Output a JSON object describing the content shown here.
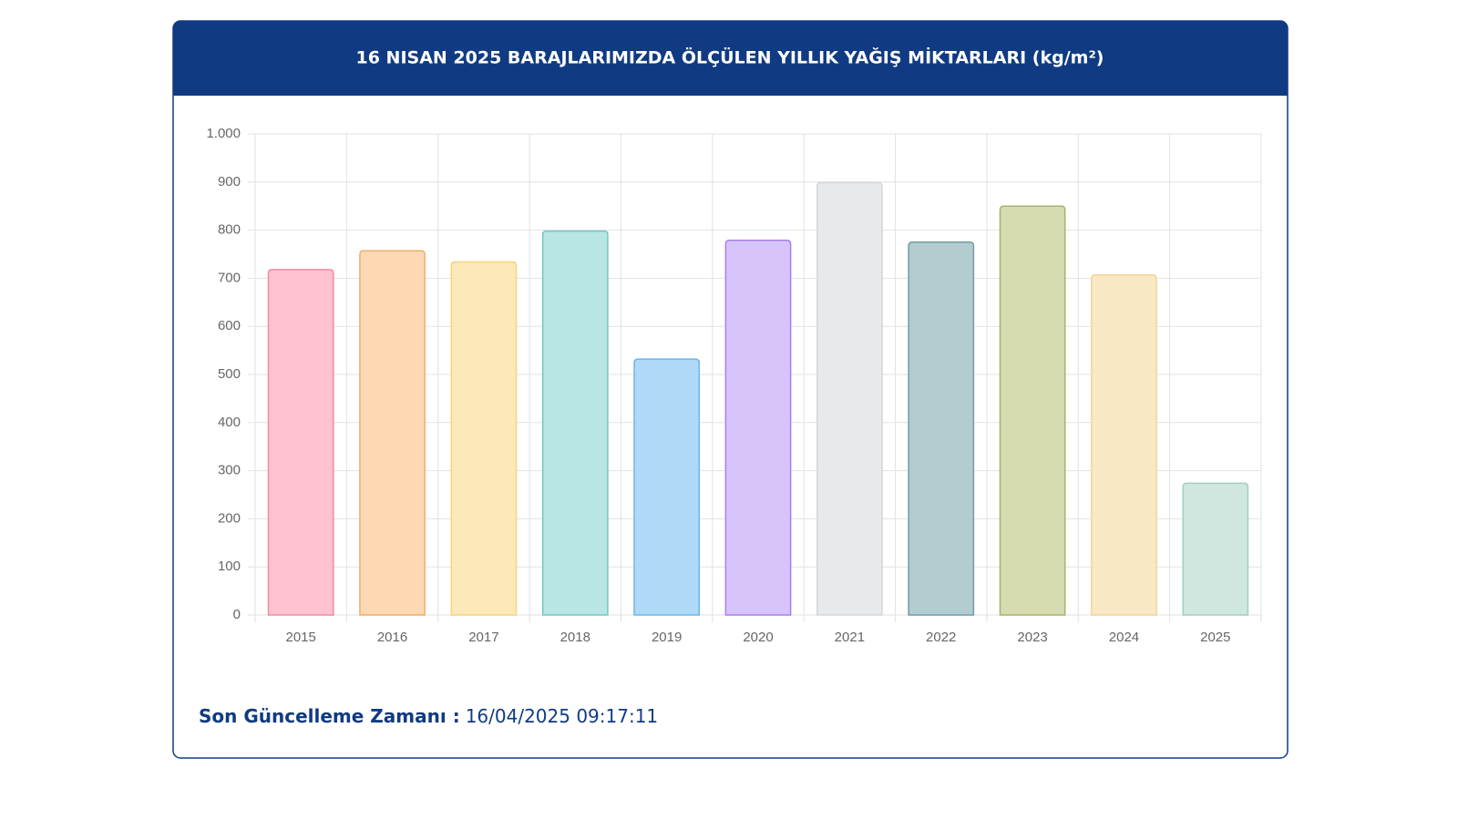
{
  "chart_data": {
    "type": "bar",
    "title": "16 NISAN 2025 BARAJLARIMIZDA ÖLÇÜLEN YILLIK YAĞIŞ MİKTARLARI (kg/m²)",
    "categories": [
      "2015",
      "2016",
      "2017",
      "2018",
      "2019",
      "2020",
      "2021",
      "2022",
      "2023",
      "2024",
      "2025"
    ],
    "values": [
      718,
      757,
      734,
      798,
      532,
      779,
      899,
      775,
      850,
      707,
      274
    ],
    "colors": [
      "#ffc2d1",
      "#fdd8b3",
      "#fde8b9",
      "#b8e6e4",
      "#b0d9f7",
      "#d7c4fb",
      "#e8e9eb",
      "#b2ccd0",
      "#d6dbb2",
      "#f9e8c6",
      "#cfe7de"
    ],
    "border_colors": [
      "#f08aa3",
      "#f2ac6b",
      "#f7d27c",
      "#72c7c2",
      "#6cb5ec",
      "#a97ef0",
      "#d5d7da",
      "#6e9ea4",
      "#a9b26c",
      "#f0d593",
      "#9fd1bd"
    ],
    "ylim": [
      0,
      1000
    ],
    "yticks": [
      0,
      100,
      200,
      300,
      400,
      500,
      600,
      700,
      800,
      900,
      {
        "value": 1000,
        "label": "1.000"
      }
    ],
    "grid": true
  },
  "footer": {
    "label": "Son Güncelleme Zamanı :",
    "value": "16/04/2025 09:17:11"
  }
}
